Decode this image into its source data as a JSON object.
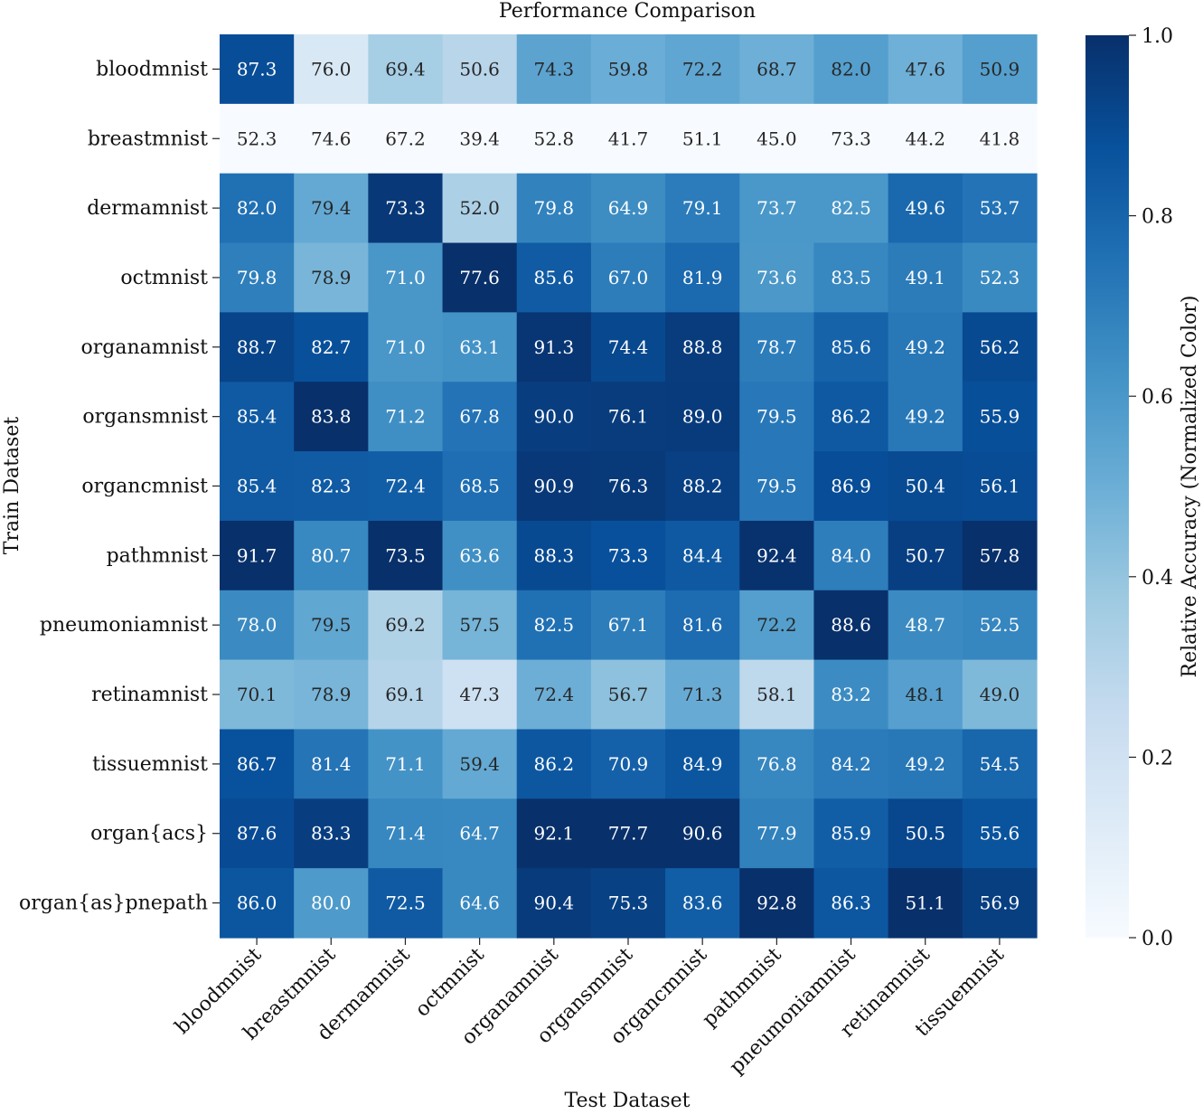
{
  "chart_data": {
    "type": "heatmap",
    "title": "Performance Comparison",
    "xlabel": "Test Dataset",
    "ylabel": "Train Dataset",
    "colorbar_label": "Relative Accuracy (Normalized Color)",
    "colorbar_range": [
      0.0,
      1.0
    ],
    "colorbar_ticks": [
      "0.0",
      "0.2",
      "0.4",
      "0.6",
      "0.8",
      "1.0"
    ],
    "colormap": "Blues",
    "normalization": "per column",
    "x_categories": [
      "bloodmnist",
      "breastmnist",
      "dermamnist",
      "octmnist",
      "organamnist",
      "organsmnist",
      "organcmnist",
      "pathmnist",
      "pneumoniamnist",
      "retinamnist",
      "tissuemnist"
    ],
    "y_categories": [
      "bloodmnist",
      "breastmnist",
      "dermamnist",
      "octmnist",
      "organamnist",
      "organsmnist",
      "organcmnist",
      "pathmnist",
      "pneumoniamnist",
      "retinamnist",
      "tissuemnist",
      "organ{acs}",
      "organ{as}pnepath"
    ],
    "values": [
      [
        "87.3",
        "76.0",
        "69.4",
        "50.6",
        "74.3",
        "59.8",
        "72.2",
        "68.7",
        "82.0",
        "47.6",
        "50.9"
      ],
      [
        "52.3",
        "74.6",
        "67.2",
        "39.4",
        "52.8",
        "41.7",
        "51.1",
        "45.0",
        "73.3",
        "44.2",
        "41.8"
      ],
      [
        "82.0",
        "79.4",
        "73.3",
        "52.0",
        "79.8",
        "64.9",
        "79.1",
        "73.7",
        "82.5",
        "49.6",
        "53.7"
      ],
      [
        "79.8",
        "78.9",
        "71.0",
        "77.6",
        "85.6",
        "67.0",
        "81.9",
        "73.6",
        "83.5",
        "49.1",
        "52.3"
      ],
      [
        "88.7",
        "82.7",
        "71.0",
        "63.1",
        "91.3",
        "74.4",
        "88.8",
        "78.7",
        "85.6",
        "49.2",
        "56.2"
      ],
      [
        "85.4",
        "83.8",
        "71.2",
        "67.8",
        "90.0",
        "76.1",
        "89.0",
        "79.5",
        "86.2",
        "49.2",
        "55.9"
      ],
      [
        "85.4",
        "82.3",
        "72.4",
        "68.5",
        "90.9",
        "76.3",
        "88.2",
        "79.5",
        "86.9",
        "50.4",
        "56.1"
      ],
      [
        "91.7",
        "80.7",
        "73.5",
        "63.6",
        "88.3",
        "73.3",
        "84.4",
        "92.4",
        "84.0",
        "50.7",
        "57.8"
      ],
      [
        "78.0",
        "79.5",
        "69.2",
        "57.5",
        "82.5",
        "67.1",
        "81.6",
        "72.2",
        "88.6",
        "48.7",
        "52.5"
      ],
      [
        "70.1",
        "78.9",
        "69.1",
        "47.3",
        "72.4",
        "56.7",
        "71.3",
        "58.1",
        "83.2",
        "48.1",
        "49.0"
      ],
      [
        "86.7",
        "81.4",
        "71.1",
        "59.4",
        "86.2",
        "70.9",
        "84.9",
        "76.8",
        "84.2",
        "49.2",
        "54.5"
      ],
      [
        "87.6",
        "83.3",
        "71.4",
        "64.7",
        "92.1",
        "77.7",
        "90.6",
        "77.9",
        "85.9",
        "50.5",
        "55.6"
      ],
      [
        "86.0",
        "80.0",
        "72.5",
        "64.6",
        "90.4",
        "75.3",
        "83.6",
        "92.8",
        "86.3",
        "51.1",
        "56.9"
      ]
    ]
  }
}
